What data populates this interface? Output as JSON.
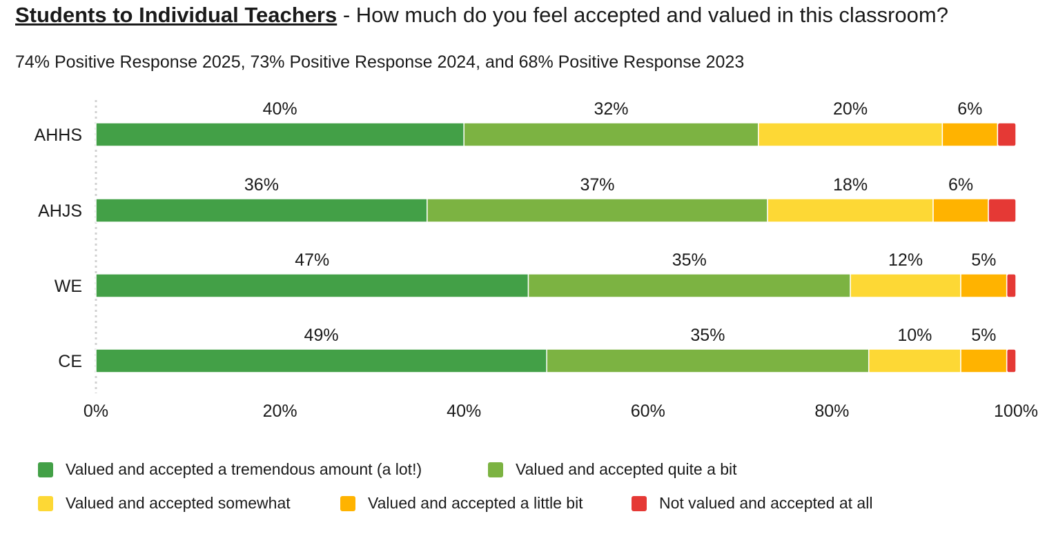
{
  "title": {
    "bold": "Students to Individual Teachers",
    "rest": " - How much do you feel accepted and valued in this classroom?"
  },
  "subtitle": "74% Positive Response 2025, 73% Positive Response 2024, and 68% Positive Response 2023",
  "chart_data": {
    "type": "bar",
    "orientation": "horizontal",
    "stacked": true,
    "normalized": true,
    "categories": [
      "AHHS",
      "AHJS",
      "WE",
      "CE"
    ],
    "series": [
      {
        "name": "Valued and accepted a tremendous amount (a lot!)",
        "color": "#43a047",
        "values": [
          40,
          36,
          47,
          49
        ],
        "labels": [
          "40%",
          "36%",
          "47%",
          "49%"
        ]
      },
      {
        "name": "Valued and accepted quite a bit",
        "color": "#7cb342",
        "values": [
          32,
          37,
          35,
          35
        ],
        "labels": [
          "32%",
          "37%",
          "35%",
          "35%"
        ]
      },
      {
        "name": "Valued and accepted somewhat",
        "color": "#fdd835",
        "values": [
          20,
          18,
          12,
          10
        ],
        "labels": [
          "20%",
          "18%",
          "12%",
          "10%"
        ]
      },
      {
        "name": "Valued and accepted a little bit",
        "color": "#ffb300",
        "values": [
          6,
          6,
          5,
          5
        ],
        "labels": [
          "6%",
          "6%",
          "5%",
          "5%"
        ]
      },
      {
        "name": "Not valued and accepted at all",
        "color": "#e53935",
        "values": [
          2,
          3,
          1,
          1
        ],
        "labels": [
          "",
          "",
          "",
          ""
        ]
      }
    ],
    "xaxis": {
      "ticks": [
        "0%",
        "20%",
        "40%",
        "60%",
        "80%",
        "100%"
      ],
      "range": [
        0,
        100
      ]
    },
    "legend_position": "bottom"
  }
}
